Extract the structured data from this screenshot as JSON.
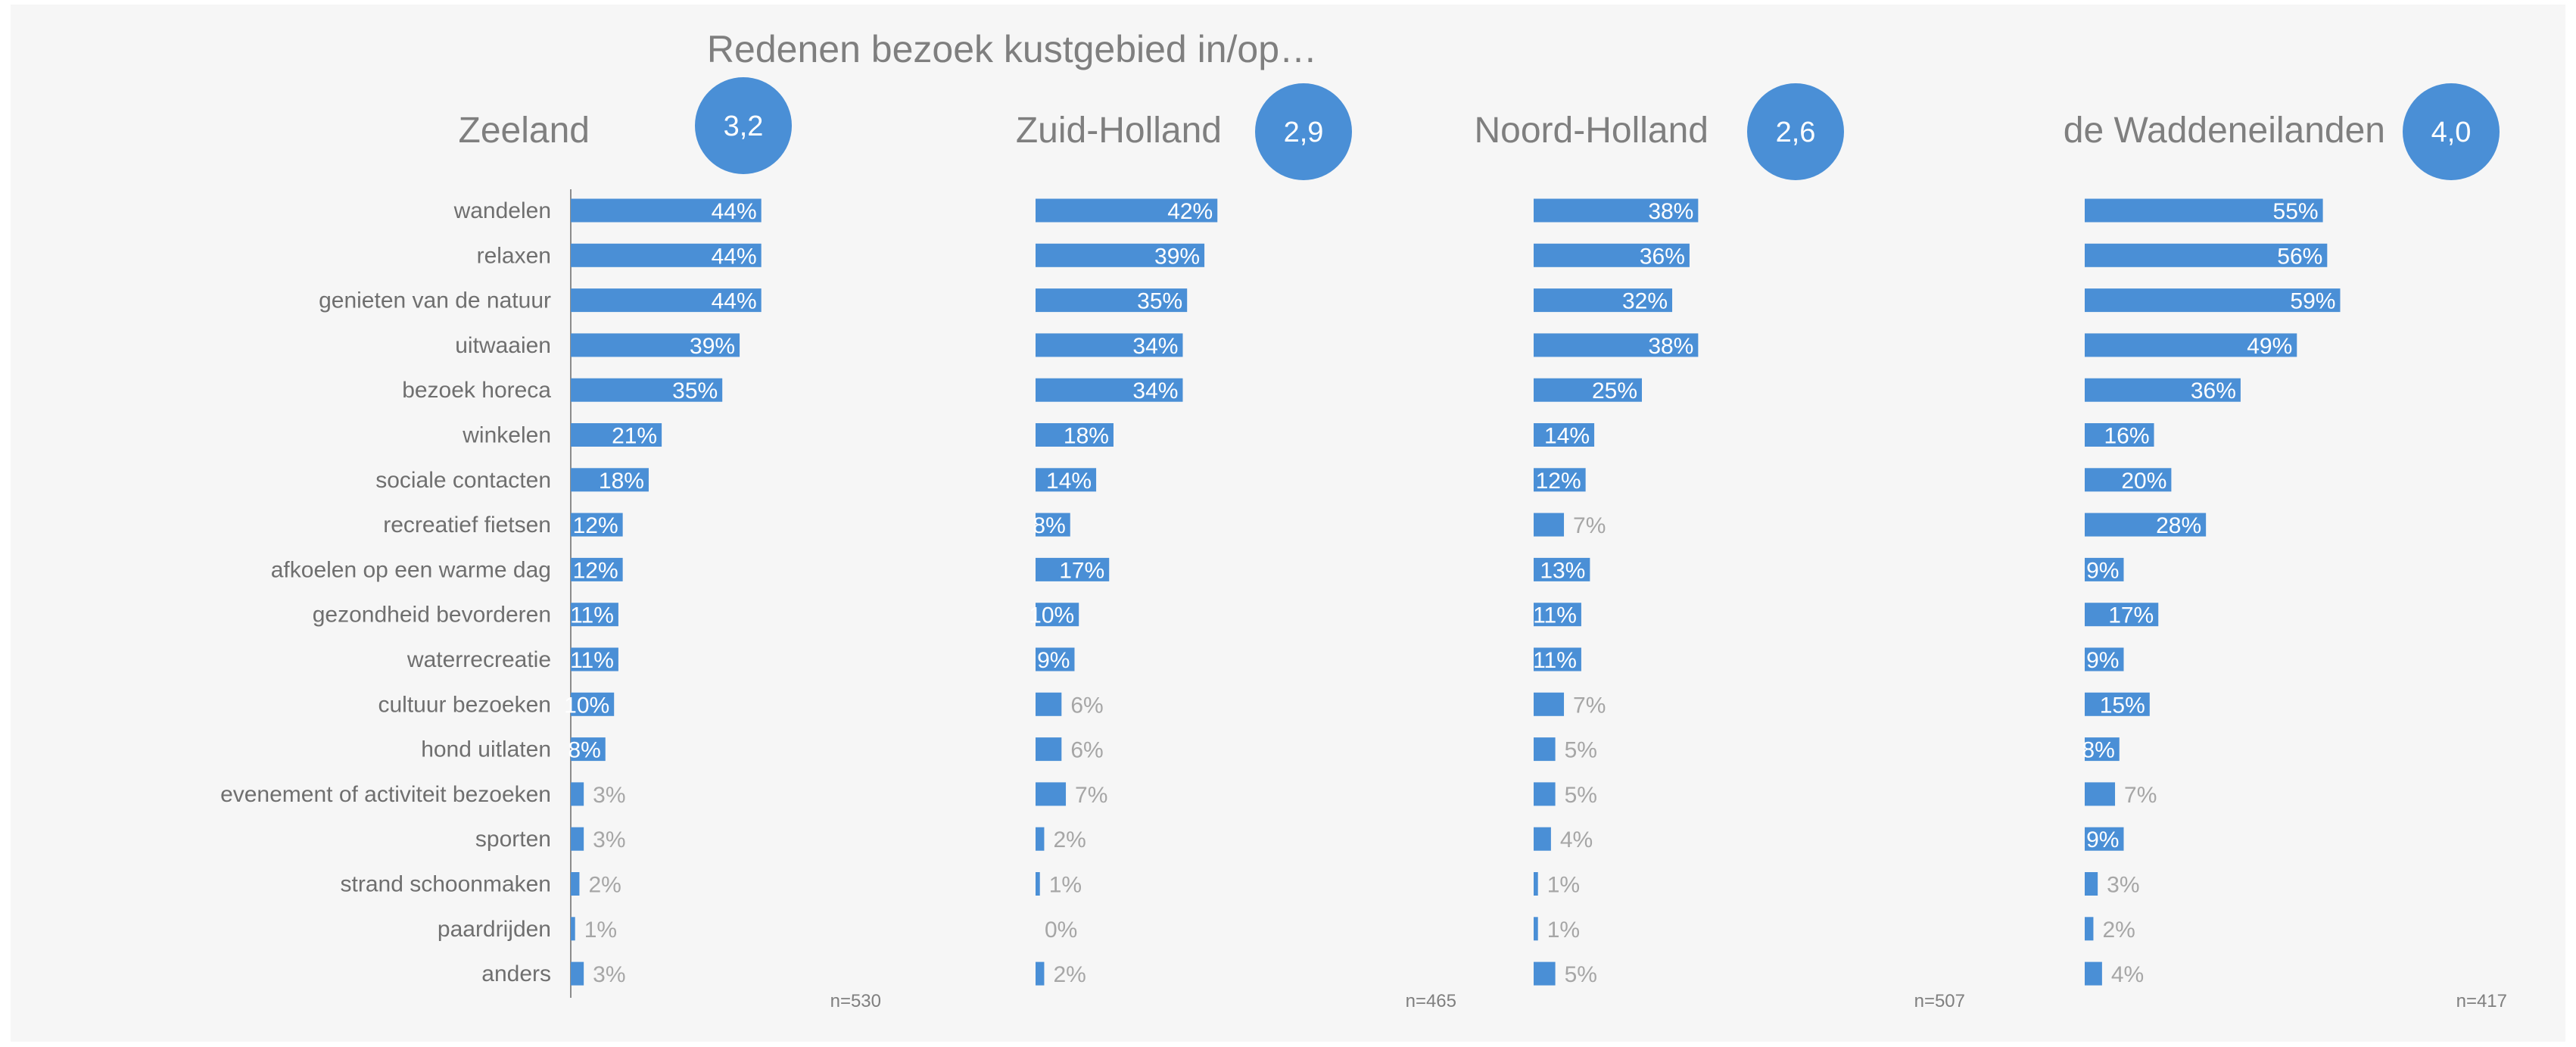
{
  "chart_data": {
    "type": "bar",
    "orientation": "horizontal",
    "title": "Redenen bezoek kustgebied in/op…",
    "categories": [
      "wandelen",
      "relaxen",
      "genieten van de natuur",
      "uitwaaien",
      "bezoek horeca",
      "winkelen",
      "sociale contacten",
      "recreatief fietsen",
      "afkoelen op een warme dag",
      "gezondheid bevorderen",
      "waterrecreatie",
      "cultuur bezoeken",
      "hond uitlaten",
      "evenement of activiteit bezoeken",
      "sporten",
      "strand schoonmaken",
      "paardrijden",
      "anders"
    ],
    "value_suffix": "%",
    "bar_color": "#4a8fd6",
    "badge_color": "#4a8fd6",
    "series": [
      {
        "name": "Zeeland",
        "badge": "3,2",
        "n": "n=530",
        "values": [
          44,
          44,
          44,
          39,
          35,
          21,
          18,
          12,
          12,
          11,
          11,
          10,
          8,
          3,
          3,
          2,
          1,
          3
        ]
      },
      {
        "name": "Zuid-Holland",
        "badge": "2,9",
        "n": "n=465",
        "values": [
          42,
          39,
          35,
          34,
          34,
          18,
          14,
          8,
          17,
          10,
          9,
          6,
          6,
          7,
          2,
          1,
          0,
          2
        ]
      },
      {
        "name": "Noord-Holland",
        "badge": "2,6",
        "n": "n=507",
        "values": [
          38,
          36,
          32,
          38,
          25,
          14,
          12,
          7,
          13,
          11,
          11,
          7,
          5,
          5,
          4,
          1,
          1,
          5
        ]
      },
      {
        "name": "de Waddeneilanden",
        "badge": "4,0",
        "n": "n=417",
        "values": [
          55,
          56,
          59,
          49,
          36,
          16,
          20,
          28,
          9,
          17,
          9,
          15,
          8,
          7,
          9,
          3,
          2,
          4
        ]
      }
    ]
  }
}
